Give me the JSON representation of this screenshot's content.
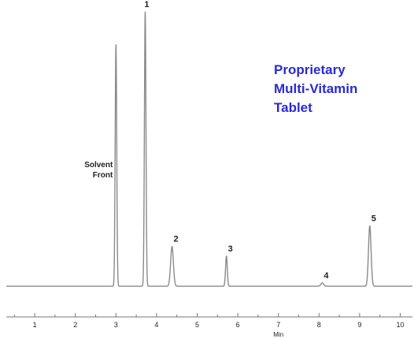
{
  "chart_data": {
    "type": "line",
    "title_lines": [
      "Proprietary",
      "Multi-Vitamin",
      "Tablet"
    ],
    "title_color": "#2a2ad4",
    "trace_color": "#8a8a8a",
    "xlabel": "Min",
    "ylabel": "",
    "xlim": [
      0.3,
      10.3
    ],
    "ylim": [
      0,
      100
    ],
    "x_ticks": [
      1,
      2,
      3,
      4,
      5,
      6,
      7,
      8,
      9,
      10
    ],
    "baseline": 2,
    "peaks": [
      {
        "label": "",
        "annotation": [
          "Solvent",
          "Front"
        ],
        "rt": 3.0,
        "height": 88,
        "width": 0.045
      },
      {
        "label": "1",
        "rt": 3.72,
        "height": 100,
        "width": 0.045
      },
      {
        "label": "2",
        "rt": 4.38,
        "height": 14.5,
        "width": 0.08
      },
      {
        "label": "3",
        "rt": 5.72,
        "height": 11,
        "width": 0.05
      },
      {
        "label": "4",
        "rt": 8.08,
        "height": 1.2,
        "width": 0.08
      },
      {
        "label": "5",
        "rt": 9.25,
        "height": 22,
        "width": 0.075
      }
    ]
  }
}
